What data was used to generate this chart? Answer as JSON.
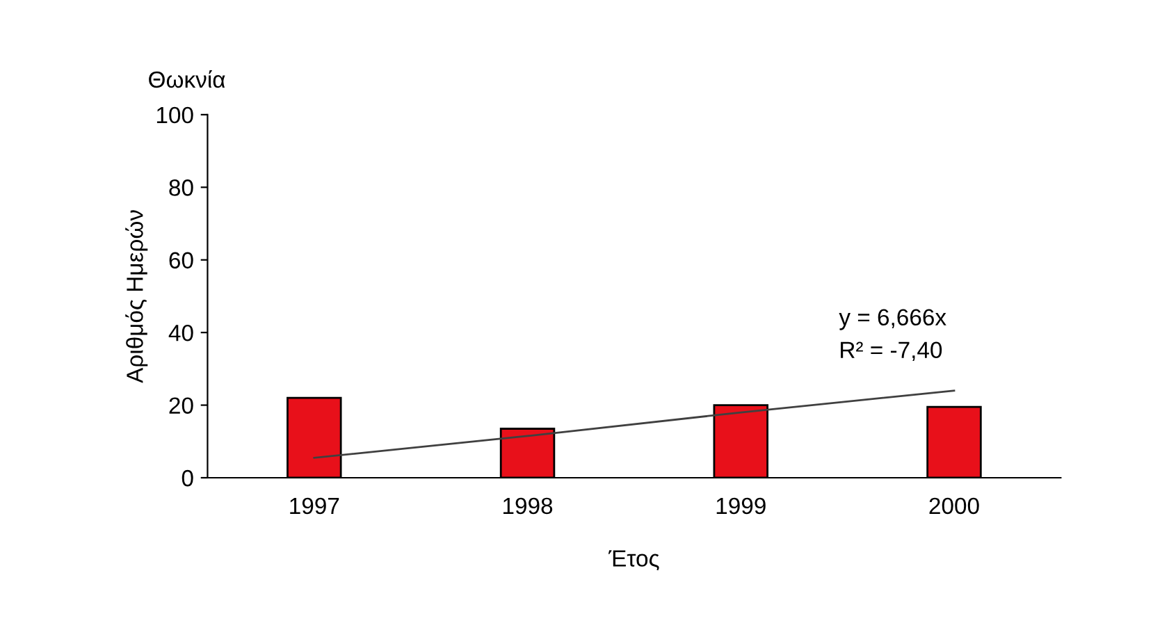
{
  "chart_data": {
    "type": "bar",
    "title": "Θωκνία",
    "xlabel": "Έτος",
    "ylabel": "Αριθμός Ημερών",
    "categories": [
      "1997",
      "1998",
      "1999",
      "2000"
    ],
    "series": [
      {
        "color": "#e8101a",
        "values": [
          22,
          13.5,
          20,
          19.5
        ]
      },
      {
        "type": "line",
        "color": "#404040",
        "values": [
          5.5,
          11.5,
          18,
          24
        ]
      }
    ],
    "annotations": [
      "y = 6,666x",
      "R² = -7,40"
    ],
    "ylim": [
      0,
      100
    ],
    "yticks": [
      0,
      20,
      40,
      60,
      80,
      100
    ],
    "grid": false,
    "legend": false
  }
}
